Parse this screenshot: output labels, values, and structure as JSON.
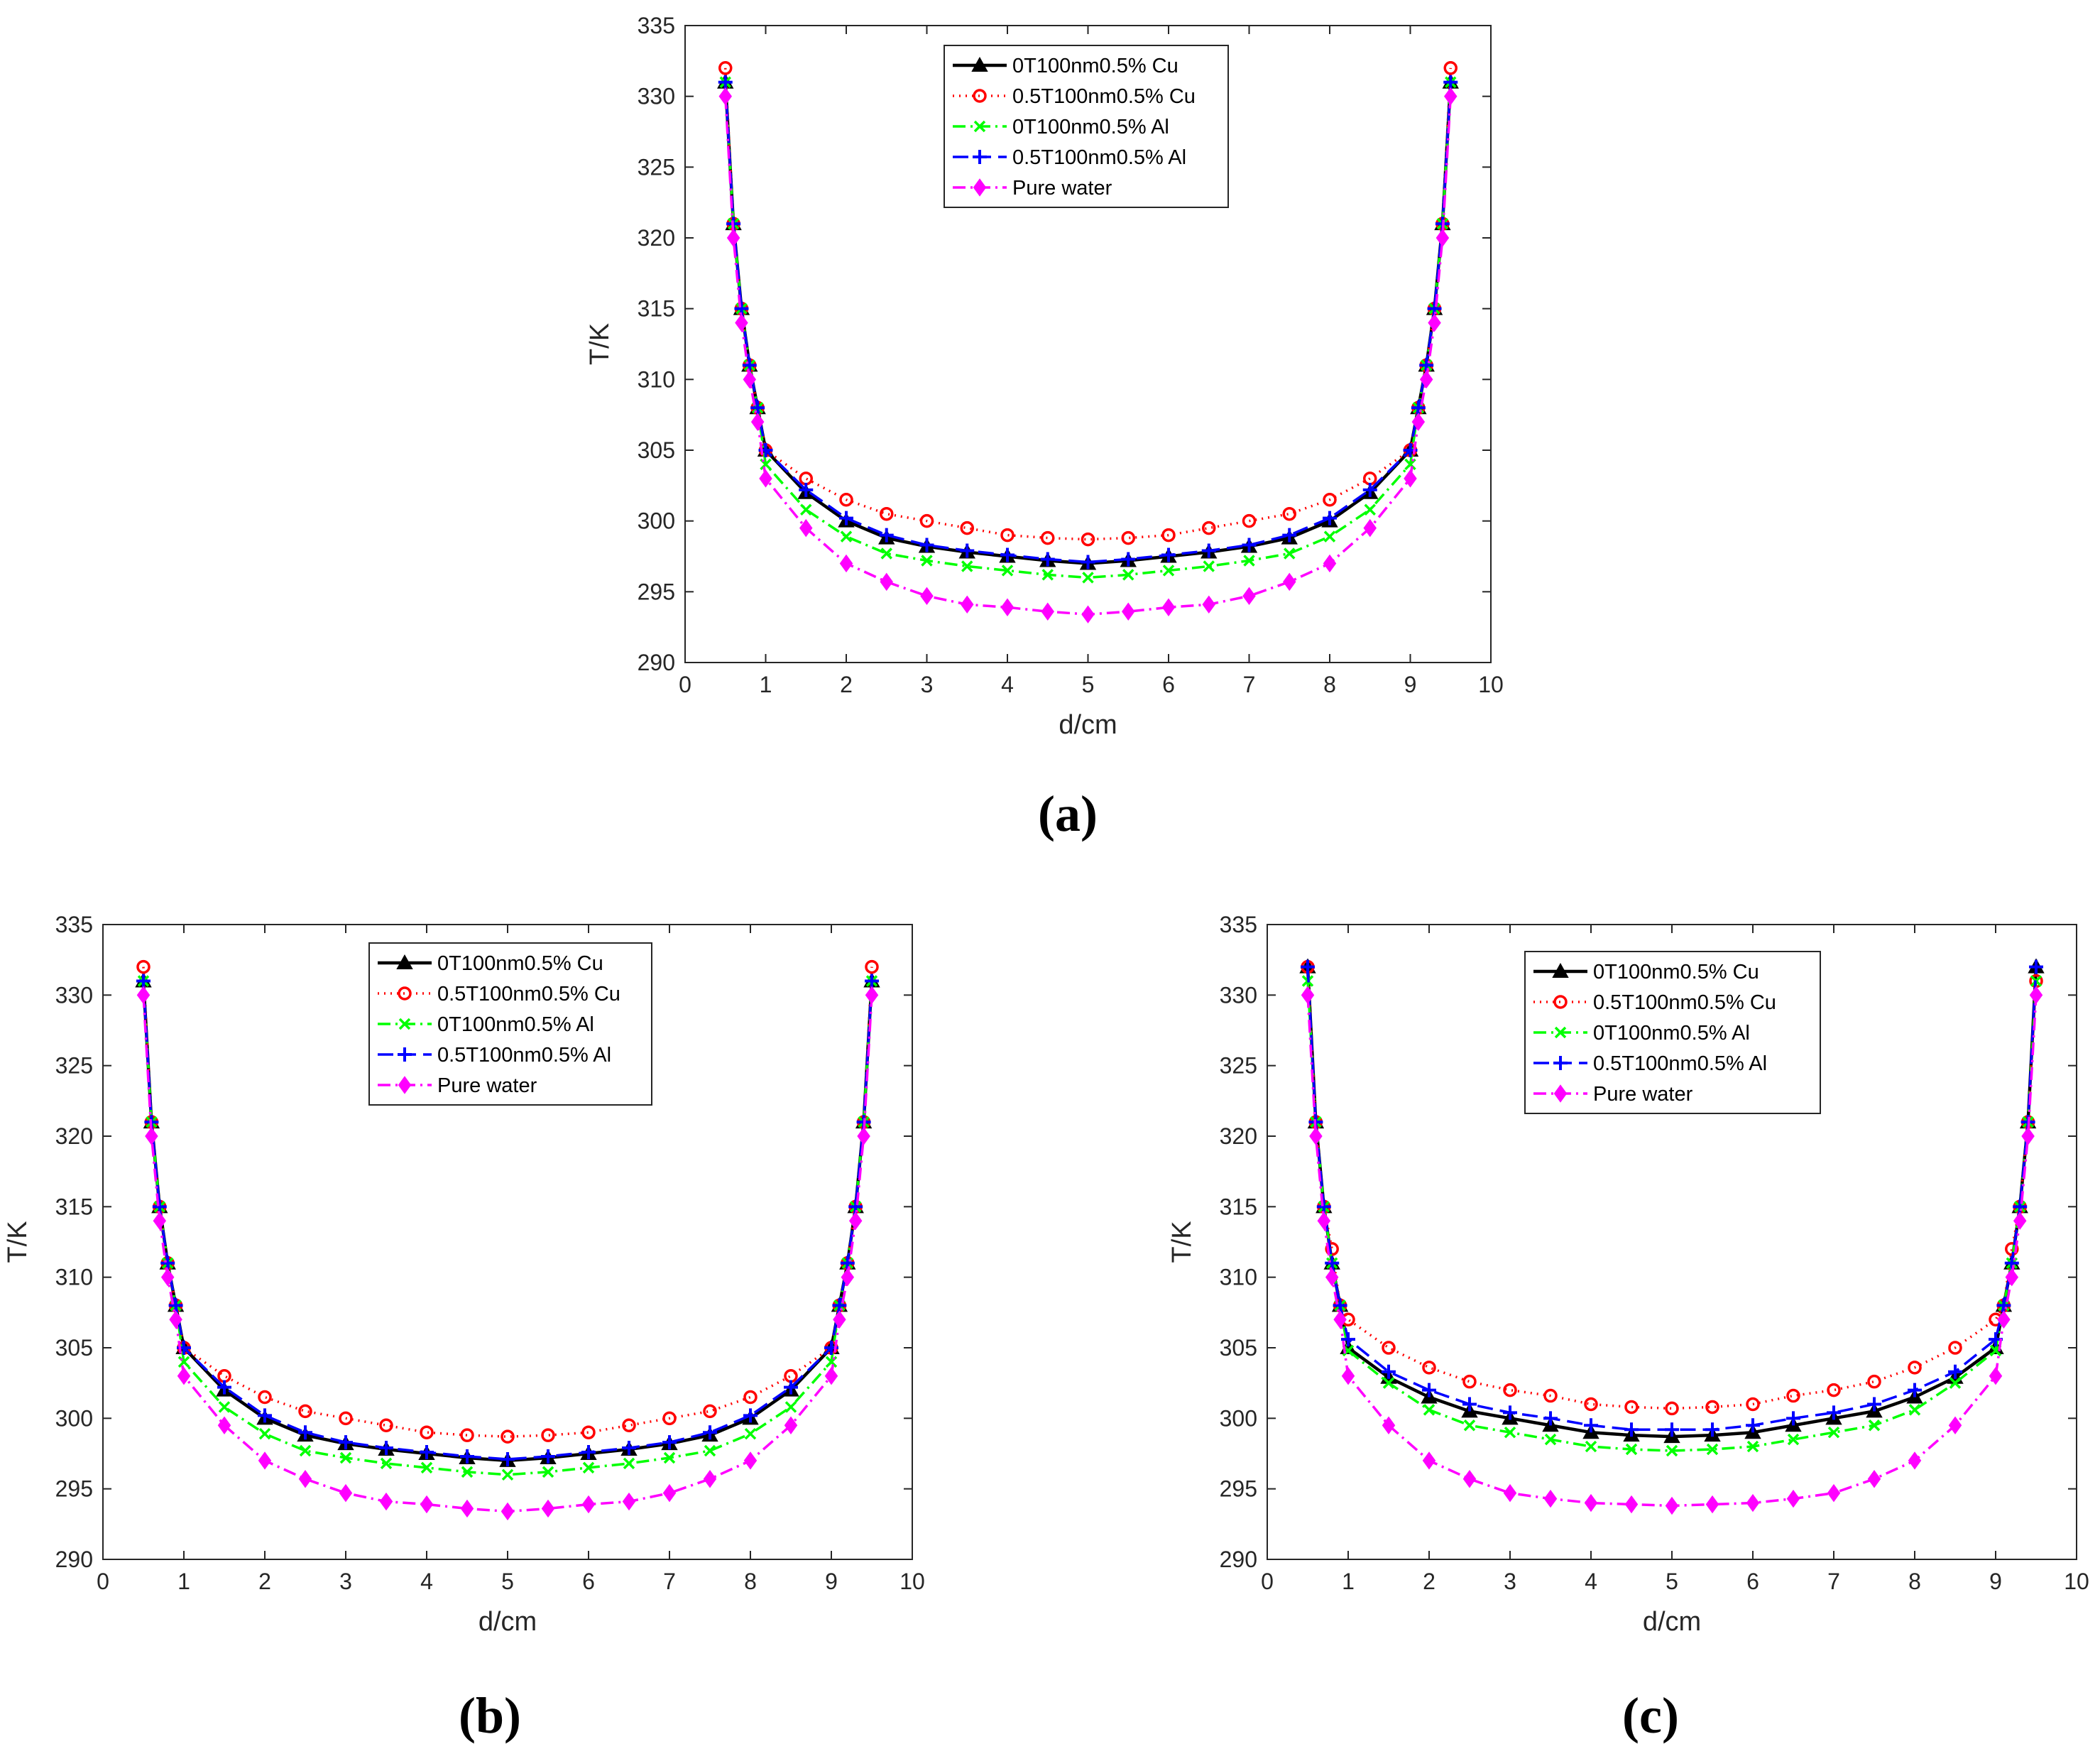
{
  "panel_labels": [
    "(a)",
    "(b)",
    "(c)"
  ],
  "chart_data": [
    {
      "panel": "(a)",
      "type": "line",
      "xlabel": "d/cm",
      "ylabel": "T/K",
      "xlim": [
        0,
        10
      ],
      "ylim": [
        290,
        335
      ],
      "xticks": [
        0,
        1,
        2,
        3,
        4,
        5,
        6,
        7,
        8,
        9,
        10
      ],
      "yticks": [
        290,
        295,
        300,
        305,
        310,
        315,
        320,
        325,
        330,
        335
      ],
      "legend_position": "top-center",
      "x": [
        0.5,
        0.6,
        0.7,
        0.8,
        0.9,
        1,
        1.5,
        2,
        2.5,
        3,
        3.5,
        4,
        4.5,
        5,
        5.5,
        6,
        6.5,
        7,
        7.5,
        8,
        8.5,
        9,
        9.1,
        9.2,
        9.3,
        9.4,
        9.5
      ],
      "series": [
        {
          "name": "0T100nm0.5% Cu",
          "color": "#000000",
          "dash": "",
          "marker": "triangle",
          "values": [
            331,
            321,
            315,
            311,
            308,
            305,
            302,
            300,
            298.8,
            298.2,
            297.8,
            297.5,
            297.2,
            297,
            297.2,
            297.5,
            297.8,
            298.2,
            298.8,
            300,
            302,
            305,
            308,
            311,
            315,
            321,
            331
          ]
        },
        {
          "name": "0.5T100nm0.5% Cu",
          "color": "#ff0000",
          "dash": "2 7",
          "marker": "circle",
          "values": [
            332,
            321,
            315,
            311,
            308,
            305,
            303,
            301.5,
            300.5,
            300,
            299.5,
            299,
            298.8,
            298.7,
            298.8,
            299,
            299.5,
            300,
            300.5,
            301.5,
            303,
            305,
            308,
            311,
            315,
            321,
            332
          ]
        },
        {
          "name": "0T100nm0.5% Al",
          "color": "#00ff00",
          "dash": "18 7 3 7",
          "marker": "x",
          "values": [
            331,
            321,
            315,
            311,
            308,
            304,
            300.8,
            298.9,
            297.7,
            297.2,
            296.8,
            296.5,
            296.2,
            296,
            296.2,
            296.5,
            296.8,
            297.2,
            297.7,
            298.9,
            300.8,
            304,
            308,
            311,
            315,
            321,
            331
          ]
        },
        {
          "name": "0.5T100nm0.5% Al",
          "color": "#0000ff",
          "dash": "22 10",
          "marker": "plus",
          "values": [
            331,
            321,
            315,
            311,
            308,
            305,
            302.2,
            300.2,
            299,
            298.3,
            297.9,
            297.6,
            297.3,
            297.1,
            297.3,
            297.6,
            297.9,
            298.3,
            299,
            300.2,
            302.2,
            305,
            308,
            311,
            315,
            321,
            331
          ]
        },
        {
          "name": "Pure water",
          "color": "#ff00ff",
          "dash": "18 7 3 7",
          "marker": "diamond",
          "values": [
            330,
            320,
            314,
            310,
            307,
            303,
            299.5,
            297,
            295.7,
            294.7,
            294.1,
            293.9,
            293.6,
            293.4,
            293.6,
            293.9,
            294.1,
            294.7,
            295.7,
            297,
            299.5,
            303,
            307,
            310,
            314,
            320,
            330
          ]
        }
      ]
    },
    {
      "panel": "(b)",
      "type": "line",
      "xlabel": "d/cm",
      "ylabel": "T/K",
      "xlim": [
        0,
        10
      ],
      "ylim": [
        290,
        335
      ],
      "xticks": [
        0,
        1,
        2,
        3,
        4,
        5,
        6,
        7,
        8,
        9,
        10
      ],
      "yticks": [
        290,
        295,
        300,
        305,
        310,
        315,
        320,
        325,
        330,
        335
      ],
      "legend_position": "top-center",
      "x": [
        0.5,
        0.6,
        0.7,
        0.8,
        0.9,
        1,
        1.5,
        2,
        2.5,
        3,
        3.5,
        4,
        4.5,
        5,
        5.5,
        6,
        6.5,
        7,
        7.5,
        8,
        8.5,
        9,
        9.1,
        9.2,
        9.3,
        9.4,
        9.5
      ],
      "series": [
        {
          "name": "0T100nm0.5% Cu",
          "color": "#000000",
          "dash": "",
          "marker": "triangle",
          "values": [
            331,
            321,
            315,
            311,
            308,
            305,
            302,
            300,
            298.8,
            298.2,
            297.8,
            297.5,
            297.2,
            297,
            297.2,
            297.5,
            297.8,
            298.2,
            298.8,
            300,
            302,
            305,
            308,
            311,
            315,
            321,
            331
          ]
        },
        {
          "name": "0.5T100nm0.5% Cu",
          "color": "#ff0000",
          "dash": "2 7",
          "marker": "circle",
          "values": [
            332,
            321,
            315,
            311,
            308,
            305,
            303,
            301.5,
            300.5,
            300,
            299.5,
            299,
            298.8,
            298.7,
            298.8,
            299,
            299.5,
            300,
            300.5,
            301.5,
            303,
            305,
            308,
            311,
            315,
            321,
            332
          ]
        },
        {
          "name": "0T100nm0.5% Al",
          "color": "#00ff00",
          "dash": "18 7 3 7",
          "marker": "x",
          "values": [
            331,
            321,
            315,
            311,
            308,
            304,
            300.8,
            298.9,
            297.7,
            297.2,
            296.8,
            296.5,
            296.2,
            296,
            296.2,
            296.5,
            296.8,
            297.2,
            297.7,
            298.9,
            300.8,
            304,
            308,
            311,
            315,
            321,
            331
          ]
        },
        {
          "name": "0.5T100nm0.5% Al",
          "color": "#0000ff",
          "dash": "22 10",
          "marker": "plus",
          "values": [
            331,
            321,
            315,
            311,
            308,
            305,
            302.2,
            300.2,
            299,
            298.3,
            297.9,
            297.6,
            297.3,
            297.1,
            297.3,
            297.6,
            297.9,
            298.3,
            299,
            300.2,
            302.2,
            305,
            308,
            311,
            315,
            321,
            331
          ]
        },
        {
          "name": "Pure water",
          "color": "#ff00ff",
          "dash": "18 7 3 7",
          "marker": "diamond",
          "values": [
            330,
            320,
            314,
            310,
            307,
            303,
            299.5,
            297,
            295.7,
            294.7,
            294.1,
            293.9,
            293.6,
            293.4,
            293.6,
            293.9,
            294.1,
            294.7,
            295.7,
            297,
            299.5,
            303,
            307,
            310,
            314,
            320,
            330
          ]
        }
      ]
    },
    {
      "panel": "(c)",
      "type": "line",
      "xlabel": "d/cm",
      "ylabel": "T/K",
      "xlim": [
        0,
        10
      ],
      "ylim": [
        290,
        335
      ],
      "xticks": [
        0,
        1,
        2,
        3,
        4,
        5,
        6,
        7,
        8,
        9,
        10
      ],
      "yticks": [
        290,
        295,
        300,
        305,
        310,
        315,
        320,
        325,
        330,
        335
      ],
      "legend_position": "top-center",
      "x": [
        0.5,
        0.6,
        0.7,
        0.8,
        0.9,
        1,
        1.5,
        2,
        2.5,
        3,
        3.5,
        4,
        4.5,
        5,
        5.5,
        6,
        6.5,
        7,
        7.5,
        8,
        8.5,
        9,
        9.1,
        9.2,
        9.3,
        9.4,
        9.5
      ],
      "series": [
        {
          "name": "0T100nm0.5% Cu",
          "color": "#000000",
          "dash": "",
          "marker": "triangle",
          "values": [
            332,
            321,
            315,
            311,
            308,
            305,
            302.9,
            301.5,
            300.5,
            300,
            299.5,
            299,
            298.8,
            298.7,
            298.8,
            299,
            299.5,
            300,
            300.5,
            301.5,
            302.9,
            305,
            308,
            311,
            315,
            321,
            332
          ]
        },
        {
          "name": "0.5T100nm0.5% Cu",
          "color": "#ff0000",
          "dash": "2 7",
          "marker": "circle",
          "values": [
            332,
            321,
            315,
            312,
            308,
            307,
            305,
            303.6,
            302.6,
            302,
            301.6,
            301,
            300.8,
            300.7,
            300.8,
            301,
            301.6,
            302,
            302.6,
            303.6,
            305,
            307,
            308,
            312,
            315,
            321,
            331
          ]
        },
        {
          "name": "0T100nm0.5% Al",
          "color": "#00ff00",
          "dash": "18 7 3 7",
          "marker": "x",
          "values": [
            331,
            321,
            315,
            311,
            308,
            304.8,
            302.5,
            300.6,
            299.5,
            299,
            298.5,
            298,
            297.8,
            297.7,
            297.8,
            298,
            298.5,
            299,
            299.5,
            300.6,
            302.5,
            304.8,
            308,
            311,
            315,
            321,
            331
          ]
        },
        {
          "name": "0.5T100nm0.5% Al",
          "color": "#0000ff",
          "dash": "22 10",
          "marker": "plus",
          "values": [
            332,
            321,
            315,
            311,
            308,
            305.6,
            303.3,
            302,
            301,
            300.4,
            300,
            299.5,
            299.2,
            299.2,
            299.2,
            299.5,
            300,
            300.4,
            301,
            302,
            303.3,
            305.6,
            308,
            311,
            315,
            321,
            332
          ]
        },
        {
          "name": "Pure water",
          "color": "#ff00ff",
          "dash": "18 7 3 7",
          "marker": "diamond",
          "values": [
            330,
            320,
            314,
            310,
            307,
            303,
            299.5,
            297,
            295.7,
            294.7,
            294.3,
            294,
            293.9,
            293.8,
            293.9,
            294,
            294.3,
            294.7,
            295.7,
            297,
            299.5,
            303,
            307,
            310,
            314,
            320,
            330
          ]
        }
      ]
    }
  ]
}
